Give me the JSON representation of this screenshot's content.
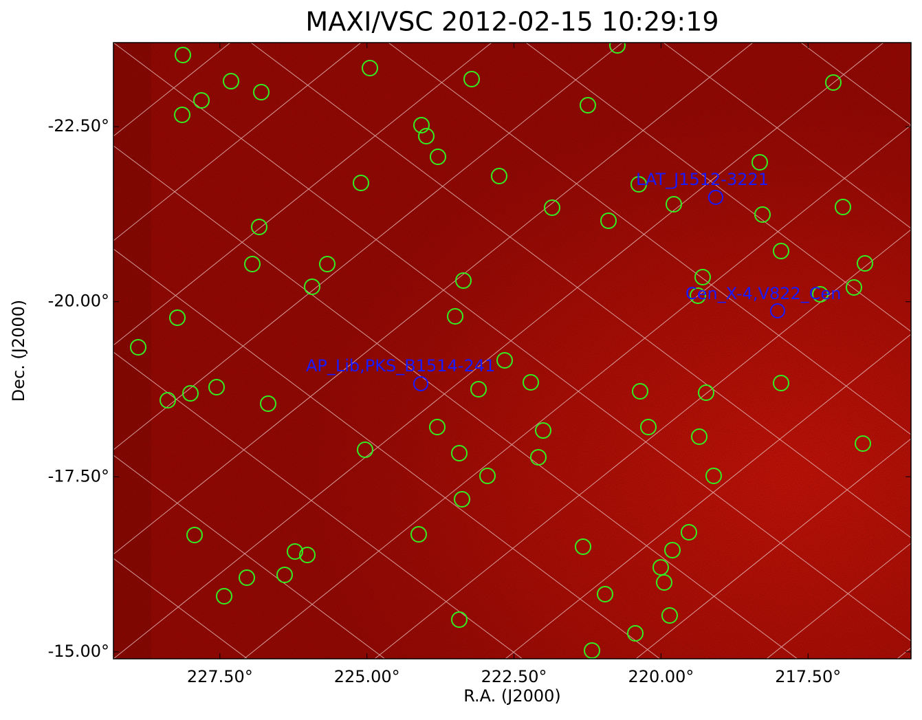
{
  "chart_data": {
    "type": "image",
    "title": "MAXI/VSC 2012-02-15 10:29:19",
    "x_label": "R.A. (J2000)",
    "y_label": "Dec. (J2000)",
    "xlim": [
      229.31,
      215.75
    ],
    "ylim": [
      -14.9,
      -23.7
    ],
    "xticks": [
      {
        "value": 227.5,
        "label": "227.50°"
      },
      {
        "value": 225,
        "label": "225.00°"
      },
      {
        "value": 222.5,
        "label": "222.50°"
      },
      {
        "value": 220,
        "label": "220.00°"
      },
      {
        "value": 217.5,
        "label": "217.50°"
      }
    ],
    "yticks": [
      {
        "value": -22.5,
        "label": "-22.50°"
      },
      {
        "value": -20,
        "label": "-20.00°"
      },
      {
        "value": -17.5,
        "label": "-17.50°"
      },
      {
        "value": -15,
        "label": "-15.00°"
      }
    ],
    "annotations": [
      "LAT_J1512-3221",
      "Cen_X-4,V822_Cen",
      "AP_Lib,PKS_B1514-241"
    ]
  }
}
